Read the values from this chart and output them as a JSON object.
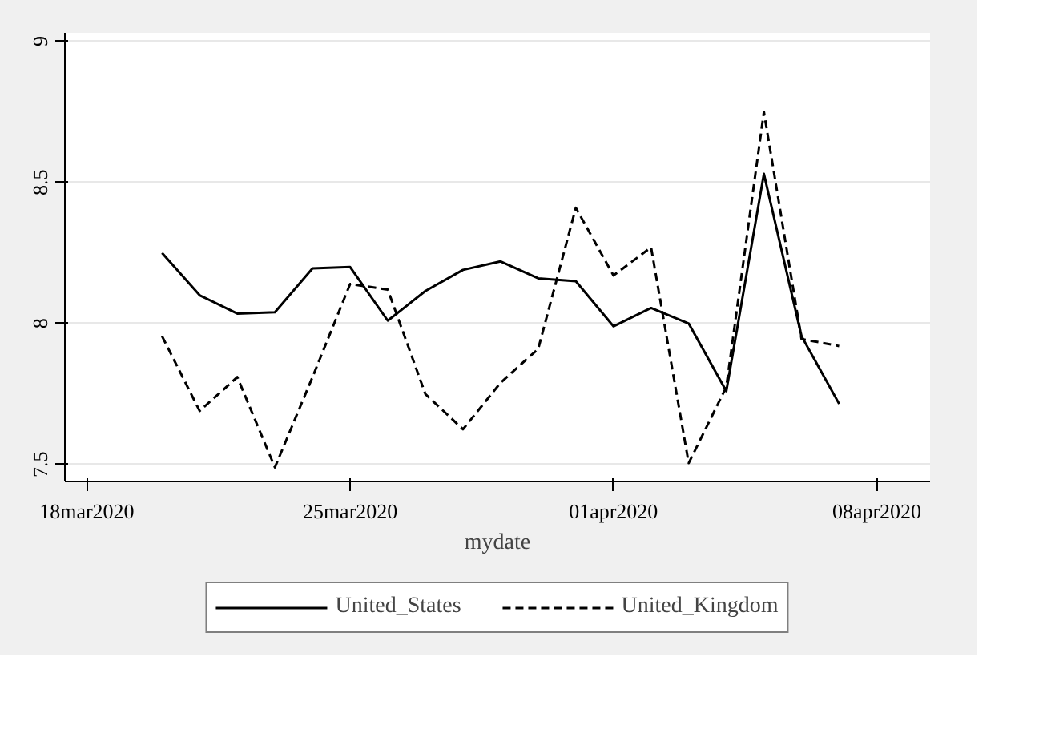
{
  "chart_data": {
    "type": "line",
    "xlabel": "mydate",
    "x": [
      "2020-03-20",
      "2020-03-21",
      "2020-03-22",
      "2020-03-23",
      "2020-03-24",
      "2020-03-25",
      "2020-03-26",
      "2020-03-27",
      "2020-03-28",
      "2020-03-29",
      "2020-03-30",
      "2020-03-31",
      "2020-04-01",
      "2020-04-02",
      "2020-04-03",
      "2020-04-04",
      "2020-04-05",
      "2020-04-06",
      "2020-04-07"
    ],
    "series": [
      {
        "name": "United_States",
        "color": "#000000",
        "line_style": "solid",
        "values": [
          8.25,
          8.1,
          8.035,
          8.04,
          8.195,
          8.2,
          8.01,
          8.115,
          8.19,
          8.22,
          8.16,
          8.15,
          7.99,
          8.055,
          8.0,
          7.76,
          8.53,
          7.955,
          7.715
        ]
      },
      {
        "name": "United_Kingdom",
        "color": "#000000",
        "line_style": "dashed",
        "values": [
          7.955,
          7.69,
          7.81,
          7.49,
          7.81,
          8.14,
          8.12,
          7.75,
          7.625,
          7.79,
          7.91,
          8.41,
          8.17,
          8.27,
          7.505,
          7.775,
          8.75,
          7.945,
          7.92
        ]
      }
    ],
    "xlim": [
      "2020-03-17T10:00",
      "2020-04-09T10:00"
    ],
    "xticks": [
      {
        "value": "2020-03-18",
        "label": "18mar2020"
      },
      {
        "value": "2020-03-25",
        "label": "25mar2020"
      },
      {
        "value": "2020-04-01",
        "label": "01apr2020"
      },
      {
        "value": "2020-04-08",
        "label": "08apr2020"
      }
    ],
    "ylim": [
      7.44,
      9.03
    ],
    "yticks": [
      7.5,
      8,
      8.5,
      9
    ],
    "grid": "y",
    "legend": "bottom",
    "marker": "none"
  }
}
